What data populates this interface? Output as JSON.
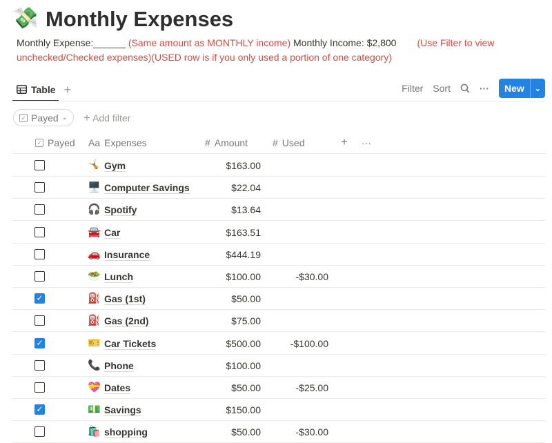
{
  "page": {
    "icon": "💸",
    "title": "Monthly Expenses",
    "desc_black1": "Monthly Expense:______ ",
    "desc_red1": "(Same amount as MONTHLY income)",
    "desc_black2": " Monthly Income: $2,800",
    "desc_red2": "(Use Filter to view unchecked/Checked expenses)(USED row is if you only used a portion of one category)"
  },
  "colors": {
    "accent": "#2383e2",
    "note": "#d44c47"
  },
  "tabs": [
    {
      "label": "Table",
      "icon": "table-icon"
    }
  ],
  "toolbar": {
    "filter": "Filter",
    "sort": "Sort",
    "new": "New"
  },
  "filter": {
    "chip": "Payed",
    "add": "Add filter"
  },
  "columns": {
    "payed": "Payed",
    "expenses": "Expenses",
    "amount": "Amount",
    "used": "Used"
  },
  "rows": [
    {
      "payed": false,
      "icon": "🤸",
      "name": "Gym",
      "amount": "$163.00",
      "used": ""
    },
    {
      "payed": false,
      "icon": "🖥️",
      "name": "Computer Savings",
      "amount": "$22.04",
      "used": ""
    },
    {
      "payed": false,
      "icon": "🎧",
      "name": "Spotify",
      "amount": "$13.64",
      "used": ""
    },
    {
      "payed": false,
      "icon": "🚘",
      "name": "Car",
      "amount": "$163.51",
      "used": ""
    },
    {
      "payed": false,
      "icon": "🚗",
      "name": "Insurance",
      "amount": "$444.19",
      "used": ""
    },
    {
      "payed": false,
      "icon": "🥗",
      "name": "Lunch",
      "amount": "$100.00",
      "used": "-$30.00"
    },
    {
      "payed": true,
      "icon": "⛽",
      "name": "Gas (1st)",
      "amount": "$50.00",
      "used": ""
    },
    {
      "payed": false,
      "icon": "⛽",
      "name": "Gas (2nd)",
      "amount": "$75.00",
      "used": ""
    },
    {
      "payed": true,
      "icon": "🎫",
      "name": "Car Tickets",
      "amount": "$500.00",
      "used": "-$100.00"
    },
    {
      "payed": false,
      "icon": "📞",
      "name": "Phone",
      "amount": "$100.00",
      "used": ""
    },
    {
      "payed": false,
      "icon": "💝",
      "name": "Dates",
      "amount": "$50.00",
      "used": "-$25.00"
    },
    {
      "payed": true,
      "icon": "💵",
      "name": "Savings",
      "amount": "$150.00",
      "used": ""
    },
    {
      "payed": false,
      "icon": "🛍️",
      "name": "shopping",
      "amount": "$50.00",
      "used": "-$30.00"
    }
  ]
}
